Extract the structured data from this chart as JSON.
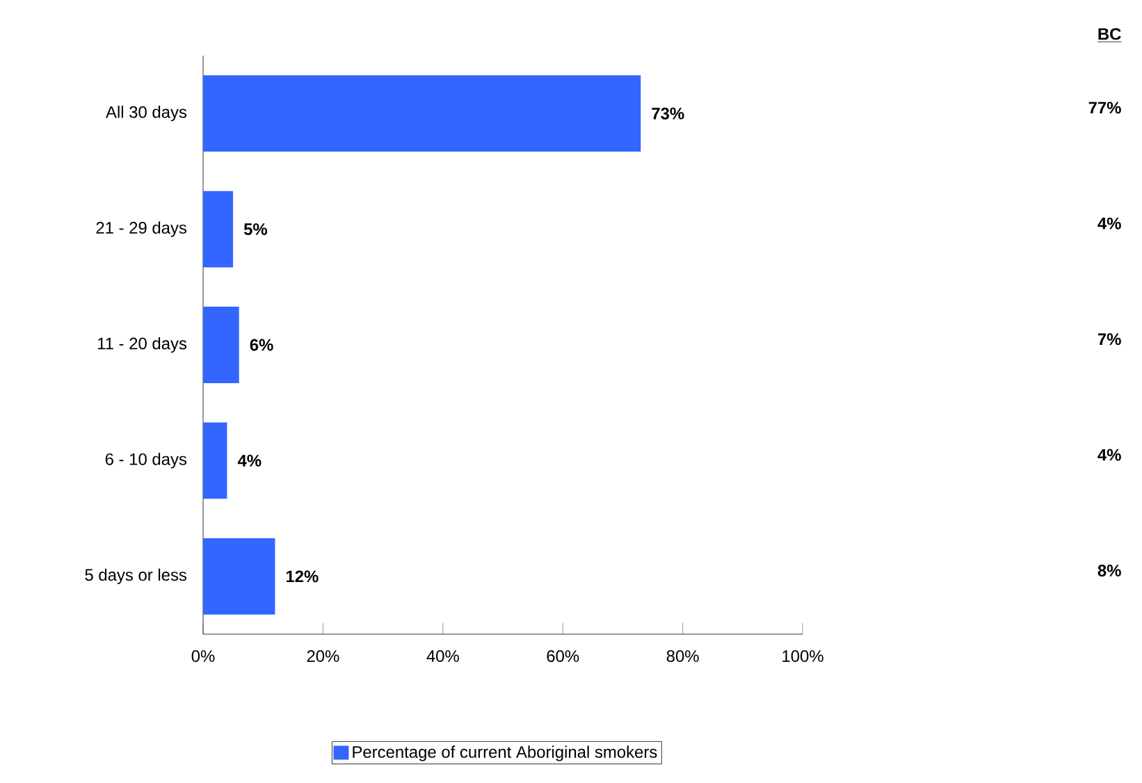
{
  "chart_data": {
    "type": "bar",
    "orientation": "horizontal",
    "categories": [
      "All 30 days",
      "21 - 29 days",
      "11 - 20 days",
      "6 - 10 days",
      "5 days or less"
    ],
    "series": [
      {
        "name": "Percentage of current Aboriginal smokers",
        "color": "#3366ff",
        "values": [
          73,
          5,
          6,
          4,
          12
        ],
        "value_labels": [
          "73%",
          "5%",
          "6%",
          "4%",
          "12%"
        ]
      }
    ],
    "xlim": [
      0,
      100
    ],
    "xticks": [
      {
        "value": 0,
        "label": "0%"
      },
      {
        "value": 20,
        "label": "20%"
      },
      {
        "value": 40,
        "label": "40%"
      },
      {
        "value": 60,
        "label": "60%"
      },
      {
        "value": 80,
        "label": "80%"
      },
      {
        "value": 100,
        "label": "100%"
      }
    ],
    "annotations": [
      "BC",
      "77%",
      "4%",
      "7%",
      "4%",
      "8%"
    ],
    "legend": "bottom",
    "grid": false
  }
}
